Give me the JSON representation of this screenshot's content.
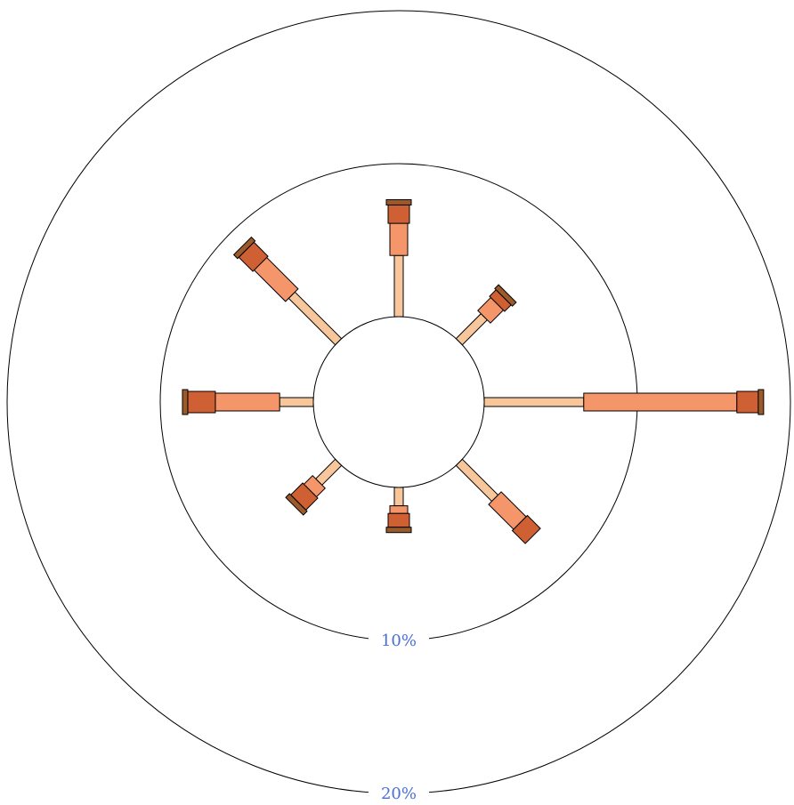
{
  "chart_data": {
    "type": "radial-bar",
    "title": "",
    "rings": [
      {
        "value": 10,
        "label": "10%"
      },
      {
        "value": 20,
        "label": "20%"
      }
    ],
    "rmax": 20,
    "directions": [
      "E",
      "NE",
      "N",
      "NW",
      "W",
      "SW",
      "S",
      "SE"
    ],
    "angles_deg": [
      0,
      45,
      90,
      135,
      180,
      225,
      270,
      315
    ],
    "series": [
      {
        "values": [
          6.5,
          2.3,
          4.0,
          4.3,
          2.2,
          1.8,
          1.2,
          3.3
        ]
      },
      {
        "values": [
          10.0,
          1.2,
          2.1,
          2.9,
          4.2,
          0.8,
          0.5,
          2.3
        ]
      },
      {
        "values": [
          1.4,
          0.6,
          1.2,
          1.3,
          1.8,
          1.1,
          0.9,
          1.2
        ]
      },
      {
        "values": [
          0.1,
          0.5,
          0.4,
          0.5,
          0.4,
          0.4,
          0.3,
          0
        ]
      }
    ],
    "colors": {
      "series": [
        "#f7c69a",
        "#f5956a",
        "#cf6033",
        "#9b5a2a"
      ],
      "ring_label": "#4a6fd8",
      "ring": "#000000"
    }
  }
}
